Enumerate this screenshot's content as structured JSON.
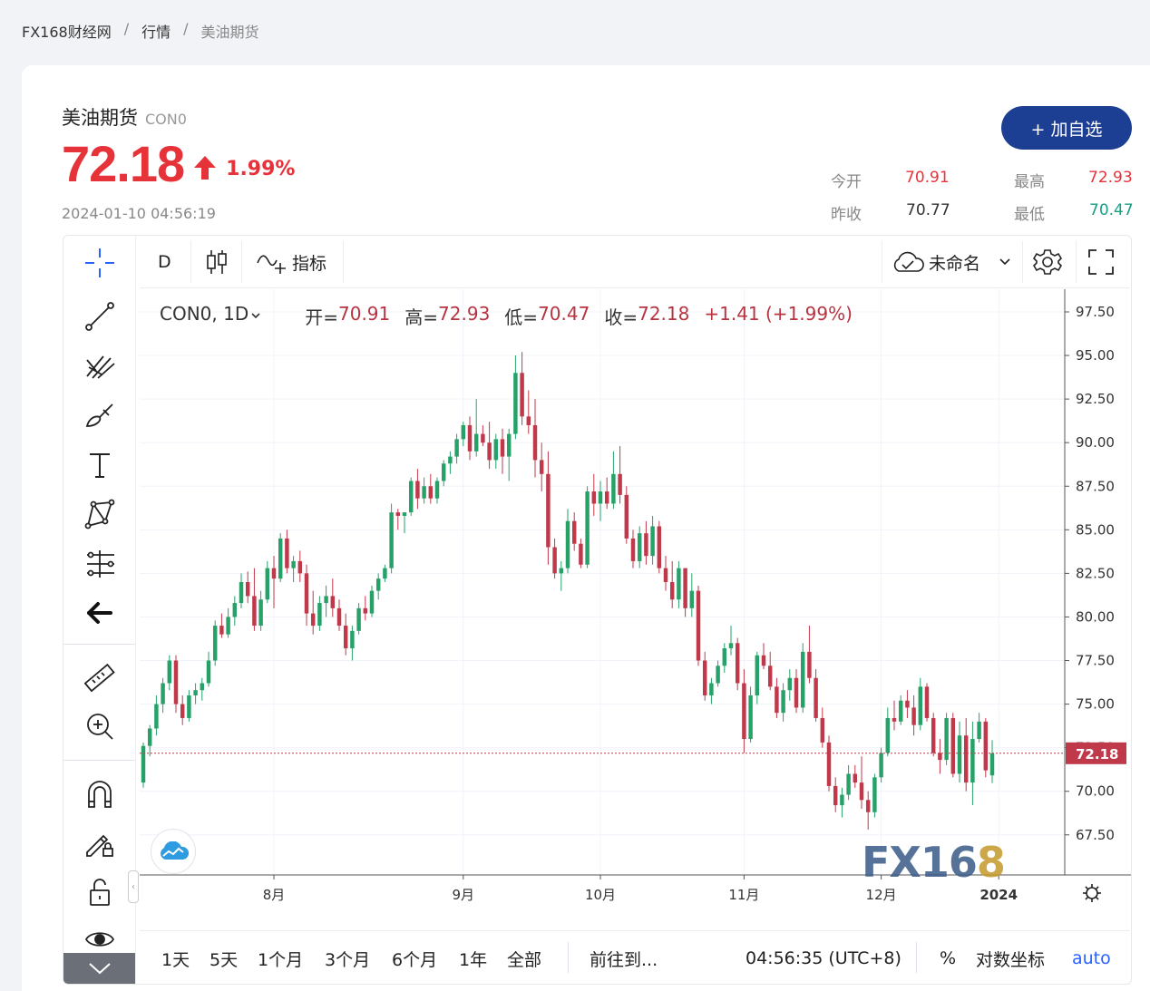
{
  "breadcrumb": {
    "home": "FX168财经网",
    "sep": "/",
    "section": "行情",
    "current": "美油期货"
  },
  "header": {
    "name": "美油期货",
    "code": "CON0",
    "price": "72.18",
    "change_pct": "1.99%",
    "timestamp": "2024-01-10 04:56:19",
    "add_button": "+ 加自选",
    "stats": {
      "open_label": "今开",
      "open": "70.91",
      "high_label": "最高",
      "high": "72.93",
      "prev_close_label": "昨收",
      "prev_close": "70.77",
      "low_label": "最低",
      "low": "70.47"
    }
  },
  "colors": {
    "up": "#e6333a",
    "down": "#16a085",
    "candle_up": "#26a269",
    "candle_down": "#c0394b",
    "accent": "#1c3f94",
    "price_line": "#c0394b"
  },
  "toolbar_top": {
    "interval": "D",
    "indicators": "指标",
    "layout_name": "未命名"
  },
  "left_tools": [
    "crosshair-icon",
    "trend-line-icon",
    "fib-icon",
    "brush-icon",
    "text-icon",
    "pattern-icon",
    "measure-icon",
    "back-arrow-icon",
    "ruler-icon",
    "zoom-in-icon",
    "magnet-icon",
    "lock-draw-icon",
    "lock-icon",
    "eye-icon"
  ],
  "legend": {
    "symbol": "CON0, 1D",
    "open_label": "开=",
    "open": "70.91",
    "high_label": "高=",
    "high": "72.93",
    "low_label": "低=",
    "low": "70.47",
    "close_label": "收=",
    "close": "72.18",
    "change": "+1.41 (+1.99%)"
  },
  "watermark": {
    "text": "FX16",
    "highlight": "8"
  },
  "bottom_toolbar": {
    "ranges": [
      "1天",
      "5天",
      "1个月",
      "3个月",
      "6个月",
      "1年",
      "全部"
    ],
    "goto": "前往到...",
    "time": "04:56:35 (UTC+8)",
    "percent": "%",
    "log": "对数坐标",
    "auto": "auto"
  },
  "chart_data": {
    "type": "candlestick",
    "ylim": [
      65.2,
      98.8
    ],
    "y_ticks": [
      "97.50",
      "95.00",
      "92.50",
      "90.00",
      "87.50",
      "85.00",
      "82.50",
      "80.00",
      "77.50",
      "75.00",
      "72.50",
      "70.00",
      "67.50"
    ],
    "x_labels": [
      "8月",
      "9月",
      "10月",
      "11月",
      "12月",
      "2024"
    ],
    "last_price_label": "72.18",
    "candles": [
      [
        70.5,
        72.8,
        70.2,
        72.6
      ],
      [
        72.6,
        73.8,
        72.0,
        73.6
      ],
      [
        73.6,
        75.5,
        73.2,
        75.0
      ],
      [
        75.0,
        76.5,
        74.5,
        76.2
      ],
      [
        76.2,
        77.8,
        75.8,
        77.5
      ],
      [
        77.5,
        77.8,
        74.5,
        75.0
      ],
      [
        75.0,
        75.5,
        73.8,
        74.2
      ],
      [
        74.2,
        75.8,
        74.0,
        75.5
      ],
      [
        75.5,
        76.2,
        75.0,
        75.8
      ],
      [
        75.8,
        76.5,
        75.2,
        76.2
      ],
      [
        76.2,
        78.0,
        76.0,
        77.5
      ],
      [
        77.5,
        79.8,
        77.2,
        79.5
      ],
      [
        79.5,
        80.2,
        78.8,
        79.0
      ],
      [
        79.0,
        80.5,
        78.8,
        80.0
      ],
      [
        80.0,
        81.2,
        79.5,
        80.8
      ],
      [
        80.8,
        82.5,
        80.5,
        82.0
      ],
      [
        82.0,
        82.6,
        80.8,
        81.2
      ],
      [
        81.2,
        82.8,
        79.2,
        79.5
      ],
      [
        79.5,
        81.5,
        79.2,
        81.0
      ],
      [
        81.0,
        83.2,
        80.8,
        82.8
      ],
      [
        82.8,
        83.5,
        80.5,
        82.2
      ],
      [
        82.2,
        84.8,
        82.0,
        84.5
      ],
      [
        84.5,
        85.0,
        82.5,
        82.8
      ],
      [
        82.8,
        83.5,
        82.0,
        83.2
      ],
      [
        83.2,
        83.8,
        82.0,
        82.5
      ],
      [
        82.5,
        83.0,
        79.5,
        80.2
      ],
      [
        80.2,
        81.5,
        79.0,
        79.5
      ],
      [
        79.5,
        81.2,
        79.2,
        80.8
      ],
      [
        80.8,
        81.8,
        80.0,
        81.2
      ],
      [
        81.2,
        82.2,
        80.0,
        80.5
      ],
      [
        80.5,
        81.0,
        79.2,
        79.5
      ],
      [
        79.5,
        80.2,
        77.8,
        78.2
      ],
      [
        78.2,
        79.5,
        77.5,
        79.2
      ],
      [
        79.2,
        80.8,
        79.0,
        80.5
      ],
      [
        80.5,
        81.2,
        79.8,
        80.2
      ],
      [
        80.2,
        81.8,
        80.0,
        81.5
      ],
      [
        81.5,
        82.5,
        81.0,
        82.2
      ],
      [
        82.2,
        83.0,
        82.0,
        82.8
      ],
      [
        82.8,
        86.5,
        82.5,
        86.0
      ],
      [
        86.0,
        86.2,
        85.0,
        85.8
      ],
      [
        85.8,
        86.0,
        84.8,
        86.0
      ],
      [
        86.0,
        88.0,
        85.8,
        87.8
      ],
      [
        87.8,
        88.5,
        86.2,
        86.8
      ],
      [
        86.8,
        88.0,
        86.5,
        87.5
      ],
      [
        87.5,
        88.2,
        86.5,
        86.8
      ],
      [
        86.8,
        88.0,
        86.5,
        87.8
      ],
      [
        87.8,
        89.0,
        87.5,
        88.8
      ],
      [
        88.8,
        89.5,
        88.2,
        89.2
      ],
      [
        89.2,
        90.5,
        88.8,
        90.2
      ],
      [
        90.2,
        91.2,
        89.8,
        91.0
      ],
      [
        91.0,
        91.5,
        89.0,
        89.5
      ],
      [
        89.5,
        92.5,
        89.2,
        90.5
      ],
      [
        90.5,
        91.0,
        89.8,
        90.0
      ],
      [
        90.0,
        91.2,
        88.5,
        89.0
      ],
      [
        89.0,
        90.5,
        88.5,
        90.2
      ],
      [
        90.2,
        90.8,
        88.2,
        89.2
      ],
      [
        89.2,
        90.8,
        87.8,
        90.5
      ],
      [
        90.5,
        95.0,
        90.2,
        94.0
      ],
      [
        94.0,
        95.2,
        91.0,
        91.5
      ],
      [
        91.5,
        93.0,
        90.5,
        91.0
      ],
      [
        91.0,
        92.5,
        88.0,
        89.0
      ],
      [
        89.0,
        90.0,
        87.2,
        88.2
      ],
      [
        88.2,
        89.5,
        83.0,
        84.0
      ],
      [
        84.0,
        84.5,
        82.2,
        82.5
      ],
      [
        82.5,
        83.2,
        81.5,
        82.8
      ],
      [
        82.8,
        86.2,
        82.5,
        85.5
      ],
      [
        85.5,
        86.0,
        83.8,
        84.2
      ],
      [
        84.2,
        84.5,
        82.8,
        83.0
      ],
      [
        83.0,
        87.5,
        82.8,
        87.2
      ],
      [
        87.2,
        88.2,
        85.8,
        86.5
      ],
      [
        86.5,
        87.8,
        85.5,
        87.2
      ],
      [
        87.2,
        88.0,
        86.2,
        86.5
      ],
      [
        86.5,
        89.5,
        86.2,
        88.2
      ],
      [
        88.2,
        89.8,
        86.5,
        87.0
      ],
      [
        87.0,
        87.5,
        84.2,
        84.5
      ],
      [
        84.5,
        85.0,
        82.8,
        83.2
      ],
      [
        83.2,
        85.2,
        82.8,
        84.8
      ],
      [
        84.8,
        85.5,
        83.0,
        83.5
      ],
      [
        83.5,
        85.8,
        83.0,
        85.2
      ],
      [
        85.2,
        85.5,
        82.5,
        82.8
      ],
      [
        82.8,
        83.5,
        81.5,
        82.0
      ],
      [
        82.0,
        83.2,
        80.5,
        81.0
      ],
      [
        81.0,
        83.2,
        80.5,
        82.8
      ],
      [
        82.8,
        82.8,
        80.0,
        80.5
      ],
      [
        80.5,
        82.5,
        80.0,
        81.5
      ],
      [
        81.5,
        81.8,
        77.2,
        77.5
      ],
      [
        77.5,
        78.0,
        75.2,
        75.5
      ],
      [
        75.5,
        76.5,
        75.0,
        76.2
      ],
      [
        76.2,
        77.5,
        76.0,
        77.2
      ],
      [
        77.2,
        78.5,
        76.8,
        78.2
      ],
      [
        78.2,
        79.5,
        77.8,
        78.5
      ],
      [
        78.5,
        78.8,
        75.8,
        76.2
      ],
      [
        76.2,
        77.0,
        72.2,
        73.0
      ],
      [
        73.0,
        76.0,
        72.8,
        75.5
      ],
      [
        75.5,
        78.0,
        75.0,
        77.8
      ],
      [
        77.8,
        78.5,
        77.0,
        77.2
      ],
      [
        77.2,
        78.0,
        75.8,
        76.0
      ],
      [
        76.0,
        76.5,
        74.2,
        74.5
      ],
      [
        74.5,
        76.2,
        74.0,
        75.8
      ],
      [
        75.8,
        77.0,
        75.2,
        76.5
      ],
      [
        76.5,
        77.0,
        74.5,
        74.8
      ],
      [
        74.8,
        78.5,
        74.5,
        78.0
      ],
      [
        78.0,
        79.5,
        76.2,
        76.5
      ],
      [
        76.5,
        77.0,
        74.0,
        74.2
      ],
      [
        74.2,
        74.8,
        72.5,
        72.8
      ],
      [
        72.8,
        73.2,
        70.0,
        70.3
      ],
      [
        70.3,
        70.8,
        68.8,
        69.2
      ],
      [
        69.2,
        70.2,
        68.5,
        69.8
      ],
      [
        69.8,
        71.5,
        69.5,
        71.0
      ],
      [
        71.0,
        71.5,
        70.2,
        70.5
      ],
      [
        70.5,
        72.0,
        69.0,
        69.5
      ],
      [
        69.5,
        70.0,
        67.8,
        68.8
      ],
      [
        68.8,
        71.0,
        68.5,
        70.8
      ],
      [
        70.8,
        72.5,
        70.5,
        72.2
      ],
      [
        72.2,
        74.8,
        72.0,
        74.2
      ],
      [
        74.2,
        75.2,
        73.5,
        74.0
      ],
      [
        74.0,
        75.5,
        73.8,
        75.2
      ],
      [
        75.2,
        75.8,
        74.2,
        74.8
      ],
      [
        74.8,
        75.5,
        73.2,
        73.8
      ],
      [
        73.8,
        76.5,
        73.5,
        76.0
      ],
      [
        76.0,
        76.2,
        74.0,
        74.2
      ],
      [
        74.2,
        74.5,
        72.0,
        72.2
      ],
      [
        72.2,
        73.0,
        71.0,
        71.8
      ],
      [
        71.8,
        74.5,
        71.5,
        74.2
      ],
      [
        74.2,
        74.5,
        70.8,
        71.0
      ],
      [
        71.0,
        74.0,
        70.5,
        73.2
      ],
      [
        73.2,
        74.2,
        70.0,
        70.5
      ],
      [
        70.5,
        74.0,
        69.2,
        73.0
      ],
      [
        73.0,
        74.5,
        72.8,
        74.0
      ],
      [
        74.0,
        74.2,
        70.8,
        71.2
      ],
      [
        70.91,
        72.93,
        70.47,
        72.18
      ]
    ]
  }
}
